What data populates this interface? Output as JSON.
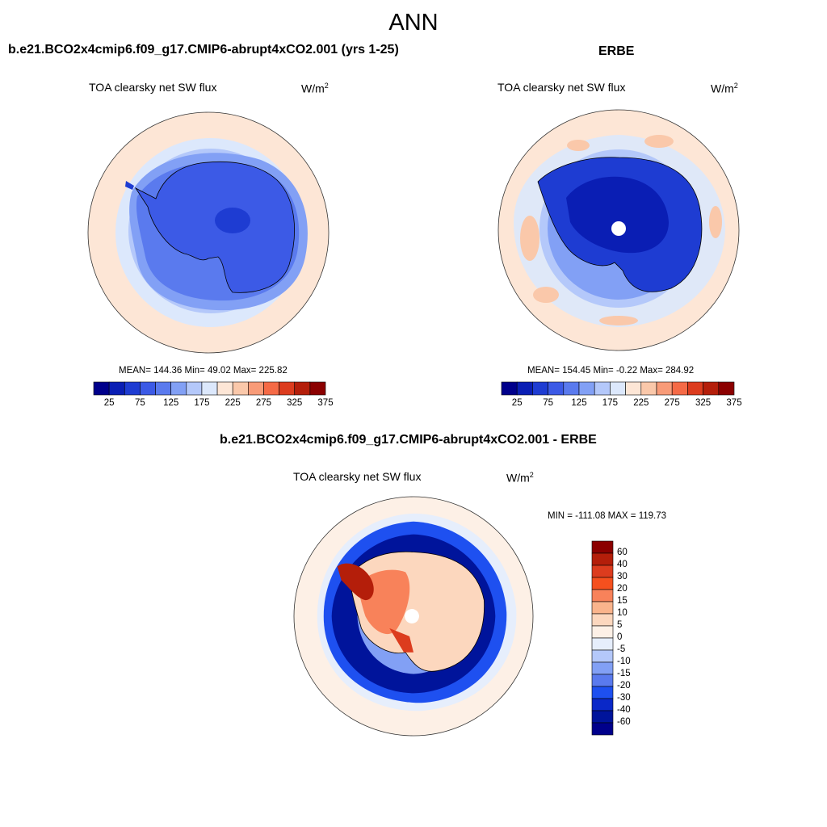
{
  "figure": {
    "title": "ANN"
  },
  "chart_data": [
    {
      "type": "heatmap",
      "title": "b.e21.BCO2x4cmip6.f09_g17.CMIP6-abrupt4xCO2.001 (yrs 1-25)",
      "subtitle": "TOA clearsky net SW flux",
      "units_base": "W/m",
      "units_exp": "2",
      "projection": "south polar stereographic",
      "stats_text": "MEAN= 144.36  Min=  49.02  Max= 225.82",
      "mean": 144.36,
      "min": 49.02,
      "max": 225.82,
      "colorbar": {
        "orientation": "horizontal",
        "levels": [
          25,
          50,
          75,
          100,
          125,
          150,
          175,
          200,
          225,
          250,
          275,
          300,
          325,
          350,
          375
        ],
        "tick_labels": [
          "25",
          "75",
          "125",
          "175",
          "225",
          "275",
          "325",
          "375"
        ],
        "colors": [
          "#00008b",
          "#0a1eb4",
          "#1e3cd2",
          "#3c5ae6",
          "#5a7aee",
          "#82a0f5",
          "#b4c8fa",
          "#dce8fc",
          "#fde6d6",
          "#fac8aa",
          "#f89b78",
          "#f56a46",
          "#dc3c1e",
          "#b41e0a",
          "#8b0000"
        ]
      }
    },
    {
      "type": "heatmap",
      "title": "ERBE",
      "subtitle": "TOA clearsky net SW flux",
      "units_base": "W/m",
      "units_exp": "2",
      "projection": "south polar stereographic",
      "stats_text": "MEAN= 154.45  Min=  -0.22  Max= 284.92",
      "mean": 154.45,
      "min": -0.22,
      "max": 284.92,
      "colorbar": {
        "orientation": "horizontal",
        "levels": [
          25,
          50,
          75,
          100,
          125,
          150,
          175,
          200,
          225,
          250,
          275,
          300,
          325,
          350,
          375
        ],
        "tick_labels": [
          "25",
          "75",
          "125",
          "175",
          "225",
          "275",
          "325",
          "375"
        ],
        "colors": [
          "#00008b",
          "#0a1eb4",
          "#1e3cd2",
          "#3c5ae6",
          "#5a7aee",
          "#82a0f5",
          "#b4c8fa",
          "#dce8fc",
          "#fde6d6",
          "#fac8aa",
          "#f89b78",
          "#f56a46",
          "#dc3c1e",
          "#b41e0a",
          "#8b0000"
        ]
      }
    },
    {
      "type": "heatmap",
      "title": "b.e21.BCO2x4cmip6.f09_g17.CMIP6-abrupt4xCO2.001 - ERBE",
      "subtitle": "TOA clearsky net SW flux",
      "units_base": "W/m",
      "units_exp": "2",
      "projection": "south polar stereographic",
      "stats_text": "MIN = -111.08 MAX = 119.73",
      "min": -111.08,
      "max": 119.73,
      "colorbar": {
        "orientation": "vertical",
        "levels": [
          60,
          40,
          30,
          20,
          15,
          10,
          5,
          0,
          -5,
          -10,
          -15,
          -20,
          -30,
          -40,
          -60
        ],
        "tick_labels": [
          "60",
          "40",
          "30",
          "20",
          "15",
          "10",
          "5",
          "0",
          "-5",
          "-10",
          "-15",
          "-20",
          "-30",
          "-40",
          "-60"
        ],
        "colors": [
          "#8b0000",
          "#b41e0a",
          "#dc3c1e",
          "#f5501e",
          "#f8825a",
          "#fab48c",
          "#fcd7be",
          "#fdf0e6",
          "#e6eefc",
          "#b4c8fa",
          "#82a0f5",
          "#5a7aee",
          "#1e50f0",
          "#0a28c8",
          "#00149b",
          "#00008b"
        ]
      }
    }
  ]
}
